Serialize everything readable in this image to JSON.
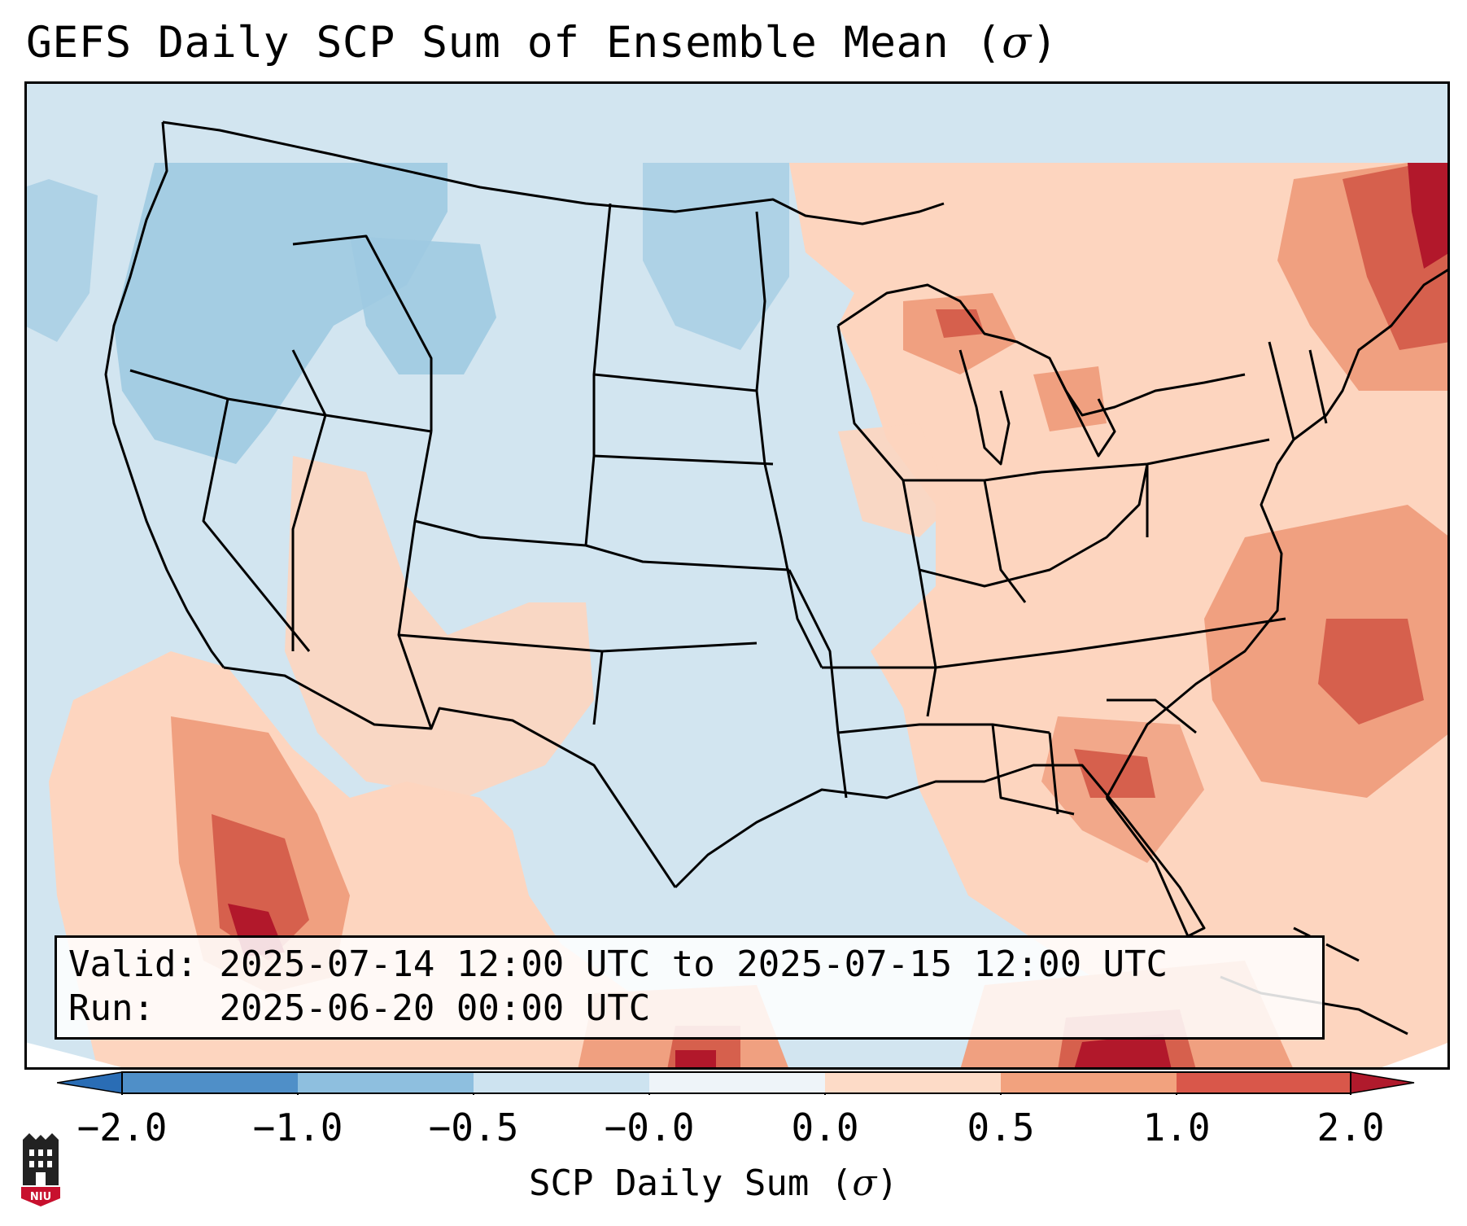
{
  "title": {
    "text": "GEFS Daily SCP Sum of Ensemble Mean (",
    "symbol": "σ",
    "close": ")"
  },
  "info": {
    "valid_label": "Valid:",
    "valid_value": "2025-07-14 12:00 UTC to 2025-07-15 12:00 UTC",
    "run_label": "Run:",
    "run_value": "2025-06-20 00:00 UTC"
  },
  "colorbar": {
    "label": "SCP Daily Sum (",
    "label_symbol": "σ",
    "label_close": ")",
    "ticks": [
      "−2.0",
      "−1.0",
      "−0.5",
      "−0.0",
      "0.0",
      "0.5",
      "1.0",
      "2.0"
    ],
    "colors": [
      "#4f8fc8",
      "#8ebfdf",
      "#cde3f0",
      "#eef4f9",
      "#fddbc7",
      "#f2a27e",
      "#d9574a",
      "#b01a2c"
    ]
  },
  "map_colors": {
    "ocean": "#d2e5f0",
    "land_neutral": "#d2e5f0",
    "light_blue": "#9ecae1",
    "light_red": "#fdd5bf",
    "mid_red": "#f0a080",
    "dark_red": "#d6604d",
    "deep_red": "#b2182b",
    "outside": "#ffffff"
  },
  "logo": {
    "text": "NIU"
  }
}
